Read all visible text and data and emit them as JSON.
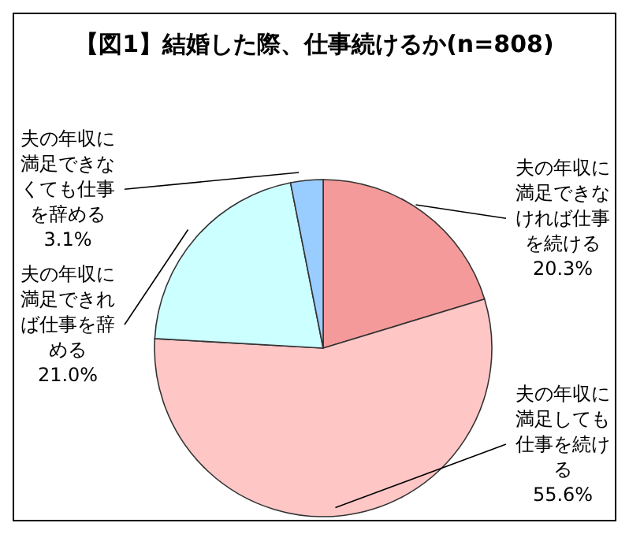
{
  "chart_data": {
    "type": "pie",
    "title": "【図1】結婚した際、仕事続けるか(n=808)",
    "categories": [
      "夫の年収に満足できなければ仕事を続ける",
      "夫の年収に満足しても仕事を続ける",
      "夫の年収に満足できれば仕事を辞める",
      "夫の年収に満足できなくても仕事を辞める"
    ],
    "values": [
      20.3,
      55.6,
      21.0,
      3.1
    ],
    "value_labels": [
      "20.3%",
      "55.6%",
      "21.0%",
      "3.1%"
    ],
    "colors": [
      "#f59a9a",
      "#ffc6c6",
      "#ccffff",
      "#99ccff"
    ],
    "legend": false
  }
}
